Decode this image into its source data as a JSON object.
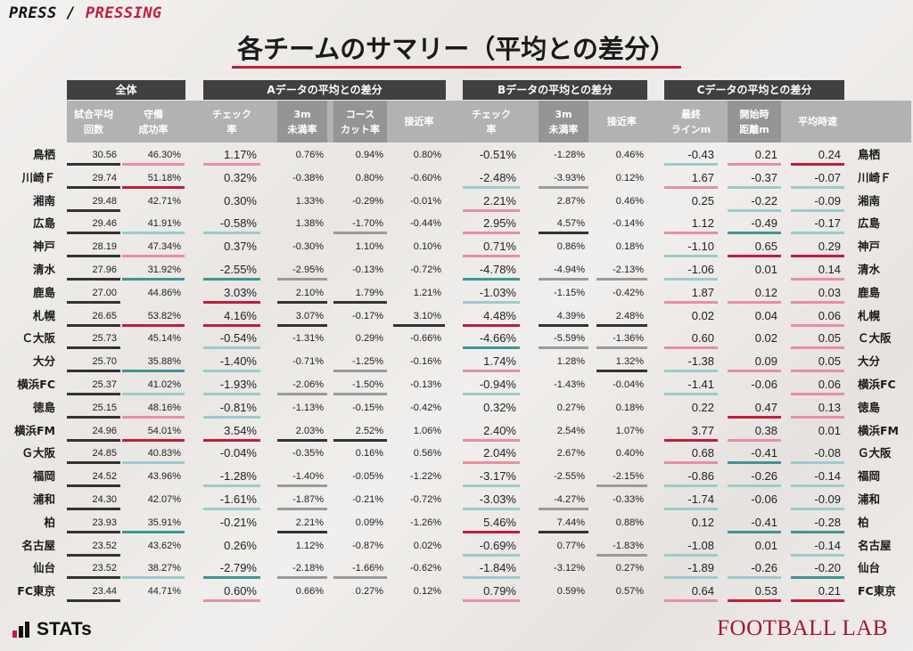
{
  "brand": {
    "left": "PRESS",
    "sep": " / ",
    "right": "PRESSING"
  },
  "title": "各チームのサマリー（平均との差分）",
  "groups": [
    "全体",
    "Aデータの平均との差分",
    "Bデータの平均との差分",
    "Cデータの平均との差分"
  ],
  "columns": [
    "試合平均\n回数",
    "守備\n成功率",
    "チェック\n率",
    "3m\n未満率",
    "コース\nカット率",
    "接近率",
    "チェック\n率",
    "3m\n未満率",
    "接近率",
    "最終\nラインm",
    "開始時\n距離m",
    "平均時速"
  ],
  "rows": [
    {
      "team": "鳥栖",
      "v": [
        "30.56",
        "46.30%",
        "1.17%",
        "0.76%",
        "0.94%",
        "0.80%",
        "-0.51%",
        "-1.28%",
        "0.46%",
        "-0.43",
        "0.21",
        "0.24"
      ]
    },
    {
      "team": "川崎Ｆ",
      "v": [
        "29.74",
        "51.18%",
        "0.32%",
        "-0.38%",
        "0.80%",
        "-0.60%",
        "-2.48%",
        "-3.93%",
        "0.12%",
        "1.67",
        "-0.37",
        "-0.07"
      ]
    },
    {
      "team": "湘南",
      "v": [
        "29.48",
        "42.71%",
        "0.30%",
        "1.33%",
        "-0.29%",
        "-0.01%",
        "2.21%",
        "2.87%",
        "0.46%",
        "0.25",
        "-0.22",
        "-0.09"
      ]
    },
    {
      "team": "広島",
      "v": [
        "29.46",
        "41.91%",
        "-0.58%",
        "1.38%",
        "-1.70%",
        "-0.44%",
        "2.95%",
        "4.57%",
        "-0.14%",
        "1.12",
        "-0.49",
        "-0.17"
      ]
    },
    {
      "team": "神戸",
      "v": [
        "28.19",
        "47.34%",
        "0.37%",
        "-0.30%",
        "1.10%",
        "0.10%",
        "0.71%",
        "0.86%",
        "0.18%",
        "-1.10",
        "0.65",
        "0.29"
      ]
    },
    {
      "team": "清水",
      "v": [
        "27.96",
        "31.92%",
        "-2.55%",
        "-2.95%",
        "-0.13%",
        "-0.72%",
        "-4.78%",
        "-4.94%",
        "-2.13%",
        "-1.06",
        "0.01",
        "0.14"
      ]
    },
    {
      "team": "鹿島",
      "v": [
        "27.00",
        "44.86%",
        "3.03%",
        "2.10%",
        "1.79%",
        "1.21%",
        "-1.03%",
        "-1.15%",
        "-0.42%",
        "1.87",
        "0.12",
        "0.03"
      ]
    },
    {
      "team": "札幌",
      "v": [
        "26.65",
        "53.82%",
        "4.16%",
        "3.07%",
        "-0.17%",
        "3.10%",
        "4.48%",
        "4.39%",
        "2.48%",
        "0.02",
        "0.04",
        "0.06"
      ]
    },
    {
      "team": "Ｃ大阪",
      "v": [
        "25.73",
        "45.14%",
        "-0.54%",
        "-1.31%",
        "0.29%",
        "-0.66%",
        "-4.66%",
        "-5.59%",
        "-1.36%",
        "0.60",
        "0.02",
        "0.05"
      ]
    },
    {
      "team": "大分",
      "v": [
        "25.70",
        "35.88%",
        "-1.40%",
        "-0.71%",
        "-1.25%",
        "-0.16%",
        "1.74%",
        "1.28%",
        "1.32%",
        "-1.38",
        "0.09",
        "0.05"
      ]
    },
    {
      "team": "横浜FC",
      "v": [
        "25.37",
        "41.02%",
        "-1.93%",
        "-2.06%",
        "-1.50%",
        "-0.13%",
        "-0.94%",
        "-1.43%",
        "-0.04%",
        "-1.41",
        "-0.06",
        "0.06"
      ]
    },
    {
      "team": "徳島",
      "v": [
        "25.15",
        "48.16%",
        "-0.81%",
        "-1.13%",
        "-0.15%",
        "-0.42%",
        "0.32%",
        "0.27%",
        "0.18%",
        "0.22",
        "0.47",
        "0.13"
      ]
    },
    {
      "team": "横浜FM",
      "v": [
        "24.96",
        "54.01%",
        "3.54%",
        "2.03%",
        "2.52%",
        "1.06%",
        "2.40%",
        "2.54%",
        "1.07%",
        "3.77",
        "0.38",
        "0.01"
      ]
    },
    {
      "team": "Ｇ大阪",
      "v": [
        "24.85",
        "40.83%",
        "-0.04%",
        "-0.35%",
        "0.16%",
        "0.56%",
        "2.04%",
        "2.67%",
        "0.40%",
        "0.68",
        "-0.41",
        "-0.08"
      ]
    },
    {
      "team": "福岡",
      "v": [
        "24.52",
        "43.96%",
        "-1.28%",
        "-1.40%",
        "-0.05%",
        "-1.22%",
        "-3.17%",
        "-2.55%",
        "-2.15%",
        "-0.86",
        "-0.26",
        "-0.14"
      ]
    },
    {
      "team": "浦和",
      "v": [
        "24.30",
        "42.07%",
        "-1.61%",
        "-1.87%",
        "-0.21%",
        "-0.72%",
        "-3.03%",
        "-4.27%",
        "-0.33%",
        "-1.74",
        "-0.06",
        "-0.09"
      ]
    },
    {
      "team": "柏",
      "v": [
        "23.93",
        "35.91%",
        "-0.21%",
        "2.21%",
        "0.09%",
        "-1.26%",
        "5.46%",
        "7.44%",
        "0.88%",
        "0.12",
        "-0.41",
        "-0.28"
      ]
    },
    {
      "team": "名古屋",
      "v": [
        "23.52",
        "43.62%",
        "0.26%",
        "1.12%",
        "-0.87%",
        "0.02%",
        "-0.69%",
        "0.77%",
        "-1.83%",
        "-1.08",
        "0.01",
        "-0.14"
      ]
    },
    {
      "team": "仙台",
      "v": [
        "23.52",
        "38.27%",
        "-2.79%",
        "-2.18%",
        "-1.66%",
        "-0.62%",
        "-1.84%",
        "-3.12%",
        "0.27%",
        "-1.89",
        "-0.26",
        "-0.20"
      ]
    },
    {
      "team": "FC東京",
      "v": [
        "23.44",
        "44.71%",
        "0.60%",
        "0.66%",
        "0.27%",
        "0.12%",
        "0.79%",
        "0.59%",
        "0.57%",
        "0.64",
        "0.53",
        "0.21"
      ]
    }
  ],
  "footer": {
    "stats_logo": "STATs",
    "football_lab": "FOOTBALL LAB"
  },
  "colors": {
    "accent_red": "#c21c3c",
    "pink": "#e88fa0",
    "teal": "#3f9595",
    "light_teal": "#9dcaca",
    "dark_gray": "#333333",
    "gray": "#9a9a9a",
    "header_dark": "#404040",
    "header_mid": "#b2b2b2"
  }
}
